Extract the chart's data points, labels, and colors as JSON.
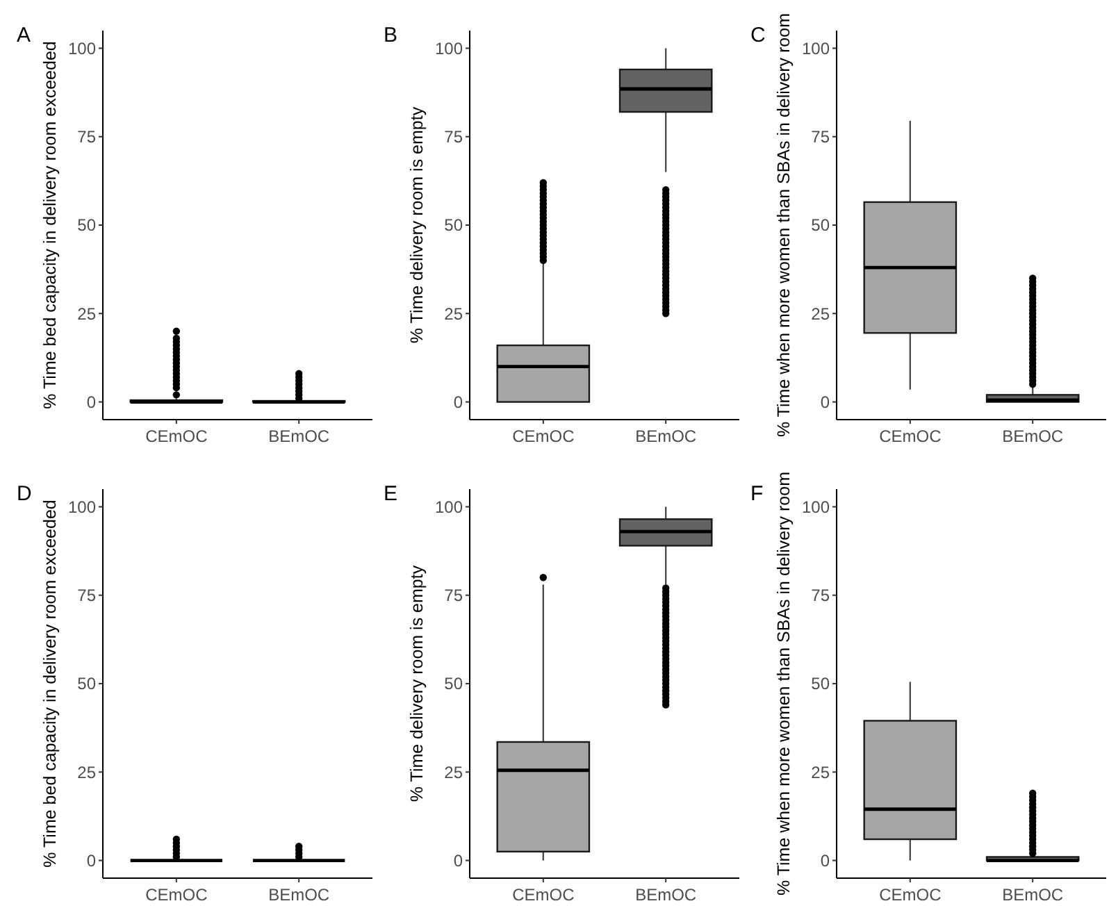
{
  "chart_data": [
    {
      "type": "box",
      "title": "A",
      "ylabel": "% Time bed capacity in delivery room exceeded",
      "categories": [
        "CEmOC",
        "BEmOC"
      ],
      "colors": [
        "#a6a6a6",
        "#636363"
      ],
      "ylim": [
        -5,
        105
      ],
      "yticks": [
        0,
        25,
        50,
        75,
        100
      ],
      "boxes": [
        {
          "low": 0,
          "q1": 0,
          "median": 0,
          "q3": 0.5,
          "high": 1,
          "outliers": [
            2,
            4,
            5,
            6,
            7,
            8,
            9,
            10,
            11,
            12,
            13,
            14,
            15,
            16,
            17,
            18,
            20
          ]
        },
        {
          "low": 0,
          "q1": 0,
          "median": 0,
          "q3": 0.3,
          "high": 0.7,
          "outliers": [
            1,
            2,
            3,
            4,
            5,
            6,
            7,
            8
          ]
        }
      ]
    },
    {
      "type": "box",
      "title": "B",
      "ylabel": "% Time delivery room is empty",
      "categories": [
        "CEmOC",
        "BEmOC"
      ],
      "colors": [
        "#a6a6a6",
        "#636363"
      ],
      "ylim": [
        -5,
        105
      ],
      "yticks": [
        0,
        25,
        50,
        75,
        100
      ],
      "boxes": [
        {
          "low": 0,
          "q1": 0,
          "median": 10,
          "q3": 16,
          "high": 39.5,
          "outliers": [
            40,
            41,
            42,
            43,
            44,
            45,
            46,
            47,
            48,
            49,
            50,
            51,
            52,
            53,
            54,
            55,
            56,
            57,
            58,
            59,
            60,
            61,
            62
          ]
        },
        {
          "low": 65,
          "q1": 82,
          "median": 88.5,
          "q3": 94,
          "high": 100,
          "outliers": [
            25,
            26,
            27,
            28,
            29,
            30,
            31,
            32,
            33,
            34,
            35,
            36,
            37,
            38,
            39,
            40,
            41,
            42,
            43,
            44,
            45,
            46,
            47,
            48,
            49,
            50,
            51,
            52,
            53,
            54,
            55,
            56,
            57,
            58,
            59,
            60
          ]
        }
      ]
    },
    {
      "type": "box",
      "title": "C",
      "ylabel": "% Time when more women than SBAs in delivery room",
      "categories": [
        "CEmOC",
        "BEmOC"
      ],
      "colors": [
        "#a6a6a6",
        "#636363"
      ],
      "ylim": [
        -5,
        105
      ],
      "yticks": [
        0,
        25,
        50,
        75,
        100
      ],
      "boxes": [
        {
          "low": 3.5,
          "q1": 19.5,
          "median": 38,
          "q3": 56.5,
          "high": 79.5
        },
        {
          "low": 0,
          "q1": 0,
          "median": 0.5,
          "q3": 2,
          "high": 4.5,
          "outliers": [
            5,
            6,
            7,
            8,
            9,
            10,
            11,
            12,
            13,
            14,
            15,
            16,
            17,
            18,
            19,
            20,
            21,
            22,
            23,
            24,
            25,
            26,
            27,
            28,
            29,
            30,
            31,
            32,
            33,
            34,
            35
          ]
        }
      ]
    },
    {
      "type": "box",
      "title": "D",
      "ylabel": "% Time bed capacity in delivery room exceeded",
      "categories": [
        "CEmOC",
        "BEmOC"
      ],
      "ylim": [
        -5,
        105
      ],
      "yticks": [
        0,
        25,
        50,
        75,
        100
      ],
      "boxes": [
        {
          "low": 0,
          "q1": 0,
          "median": 0,
          "q3": 0,
          "high": 0,
          "outliers": [
            1,
            2,
            3,
            4,
            5,
            6
          ]
        },
        {
          "low": 0,
          "q1": 0,
          "median": 0,
          "q3": 0,
          "high": 0,
          "outliers": [
            1,
            2,
            3,
            4
          ]
        }
      ]
    },
    {
      "type": "box",
      "title": "E",
      "ylabel": "% Time delivery room is empty",
      "categories": [
        "CEmOC",
        "BEmOC"
      ],
      "colors": [
        "#a6a6a6",
        "#636363"
      ],
      "ylim": [
        -5,
        105
      ],
      "yticks": [
        0,
        25,
        50,
        75,
        100
      ],
      "boxes": [
        {
          "low": 0,
          "q1": 2.5,
          "median": 25.5,
          "q3": 33.5,
          "high": 78,
          "outliers": [
            80
          ]
        },
        {
          "low": 78,
          "q1": 89,
          "median": 93,
          "q3": 96.5,
          "high": 100,
          "outliers": [
            44,
            45,
            46,
            47,
            48,
            49,
            50,
            51,
            52,
            53,
            54,
            55,
            56,
            57,
            58,
            59,
            60,
            61,
            62,
            63,
            64,
            65,
            66,
            67,
            68,
            69,
            70,
            71,
            72,
            73,
            74,
            75,
            76,
            77
          ]
        }
      ]
    },
    {
      "type": "box",
      "title": "F",
      "ylabel": "% Time when more women than SBAs in delivery room",
      "categories": [
        "CEmOC",
        "BEmOC"
      ],
      "colors": [
        "#a6a6a6",
        "#636363"
      ],
      "ylim": [
        -5,
        105
      ],
      "yticks": [
        0,
        25,
        50,
        75,
        100
      ],
      "boxes": [
        {
          "low": 0,
          "q1": 6,
          "median": 14.5,
          "q3": 39.5,
          "high": 50.5
        },
        {
          "low": 0,
          "q1": 0,
          "median": 0,
          "q3": 1,
          "high": 2,
          "outliers": [
            2,
            3,
            4,
            5,
            6,
            7,
            8,
            9,
            10,
            11,
            12,
            13,
            14,
            15,
            16,
            17,
            18,
            19
          ]
        }
      ]
    }
  ]
}
